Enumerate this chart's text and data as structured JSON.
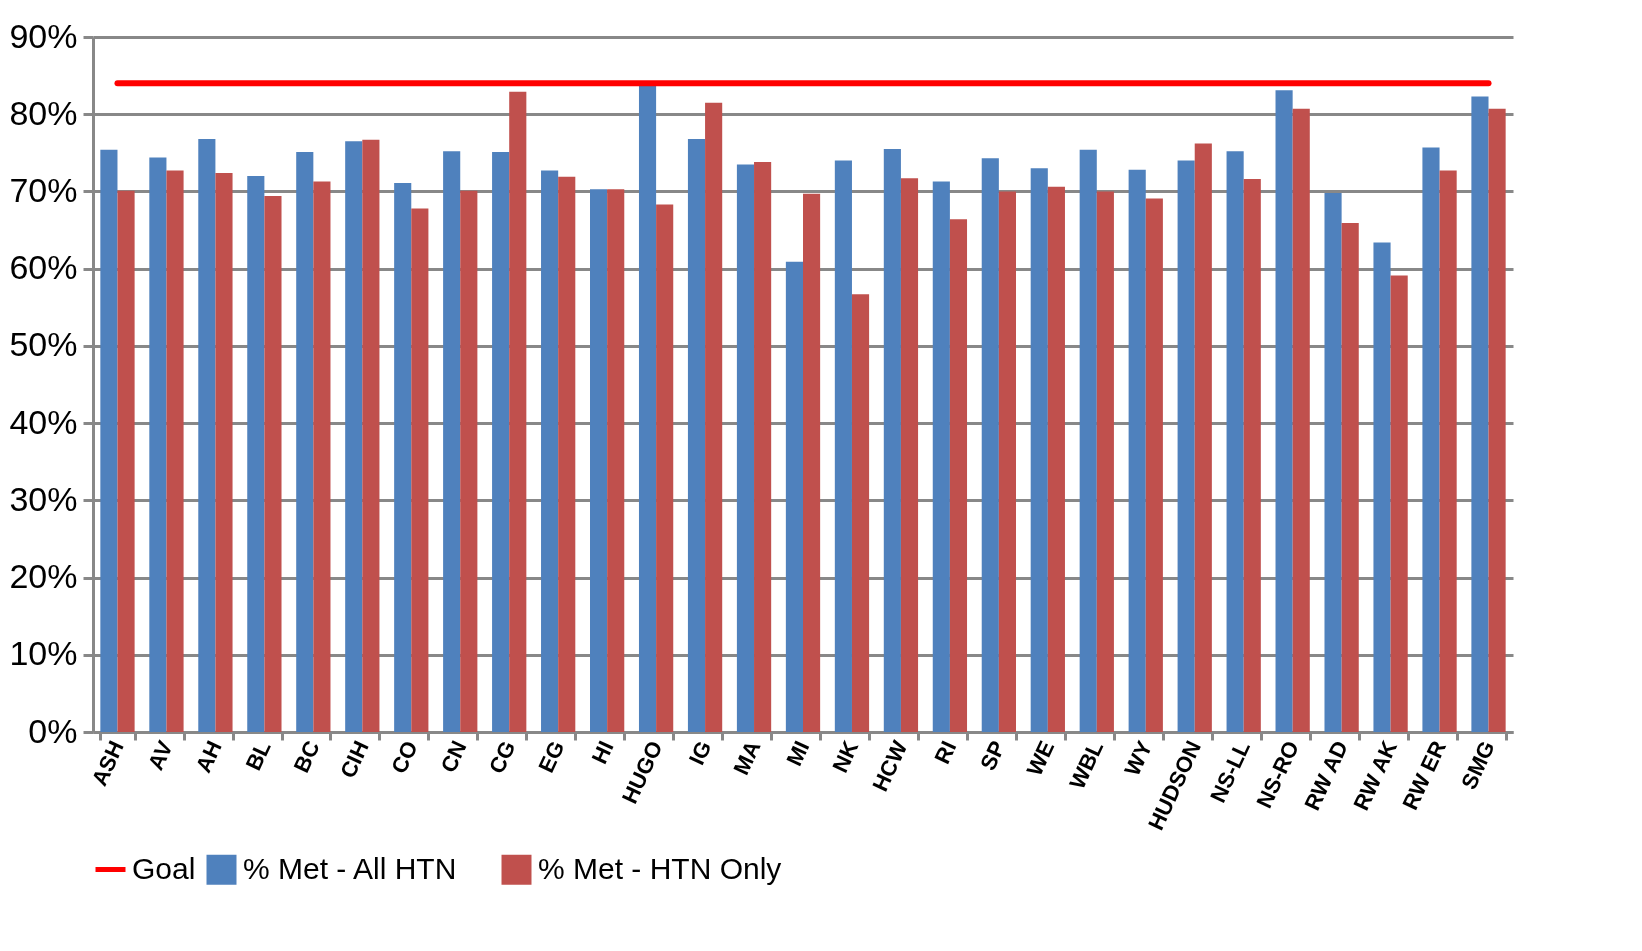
{
  "chart_data": {
    "type": "bar",
    "categories": [
      "ASH",
      "AV",
      "AH",
      "BL",
      "BC",
      "CIH",
      "CO",
      "CN",
      "CG",
      "EG",
      "HI",
      "HUGO",
      "IG",
      "MA",
      "MI",
      "NK",
      "HCW",
      "RI",
      "SP",
      "WE",
      "WBL",
      "WY",
      "HUDSON",
      "NS-LL",
      "NS-RO",
      "RW AD",
      "RW AK",
      "RW ER",
      "SMG"
    ],
    "series": [
      {
        "name": "% Met - All HTN",
        "color": "#4f81bd",
        "values": [
          75.4,
          74.4,
          76.8,
          72.0,
          75.1,
          76.5,
          71.1,
          75.2,
          75.1,
          72.7,
          70.3,
          83.7,
          76.8,
          73.5,
          60.9,
          74.0,
          75.5,
          71.3,
          74.3,
          73.0,
          75.4,
          72.8,
          74.0,
          75.2,
          83.1,
          69.8,
          63.4,
          75.7,
          82.3
        ]
      },
      {
        "name": "% Met - HTN Only",
        "color": "#c0504d",
        "values": [
          70.1,
          72.7,
          72.4,
          69.4,
          71.3,
          76.7,
          67.8,
          70.1,
          82.9,
          71.9,
          70.3,
          68.3,
          81.5,
          73.8,
          69.7,
          56.7,
          71.7,
          66.4,
          70.0,
          70.6,
          70.0,
          69.1,
          76.2,
          71.6,
          80.7,
          65.9,
          59.1,
          72.7,
          80.7
        ]
      },
      {
        "name": "Goal",
        "type": "line",
        "color": "#ff0000",
        "values": [
          84,
          84,
          84,
          84,
          84,
          84,
          84,
          84,
          84,
          84,
          84,
          84,
          84,
          84,
          84,
          84,
          84,
          84,
          84,
          84,
          84,
          84,
          84,
          84,
          84,
          84,
          84,
          84,
          84
        ]
      }
    ],
    "ylim": [
      0,
      90
    ],
    "yticks": [
      {
        "value": 0,
        "label": "0%"
      },
      {
        "value": 10,
        "label": "10%"
      },
      {
        "value": 20,
        "label": "20%"
      },
      {
        "value": 30,
        "label": "30%"
      },
      {
        "value": 40,
        "label": "40%"
      },
      {
        "value": 50,
        "label": "50%"
      },
      {
        "value": 60,
        "label": "60%"
      },
      {
        "value": 70,
        "label": "70%"
      },
      {
        "value": 80,
        "label": "80%"
      },
      {
        "value": 90,
        "label": "90%"
      }
    ],
    "grid": "y",
    "legend": "bottom"
  }
}
